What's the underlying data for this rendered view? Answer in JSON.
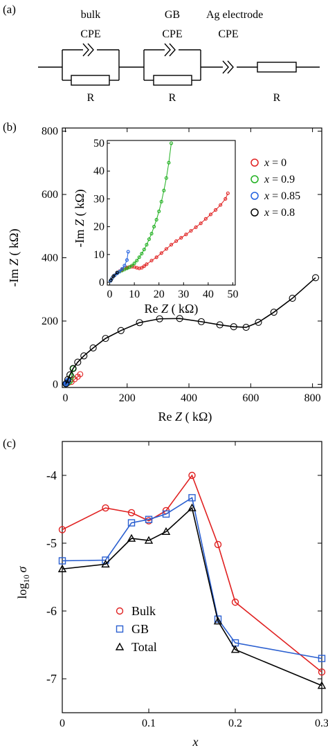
{
  "circuit": {
    "panel_label": "(a)",
    "elements": [
      {
        "top1": "bulk",
        "top2": "CPE",
        "bottom": "R"
      },
      {
        "top1": "GB",
        "top2": "CPE",
        "bottom": "R"
      },
      {
        "top1": "Ag electrode",
        "top2": "CPE",
        "bottom": "R"
      }
    ]
  },
  "chart_data": [
    {
      "type": "scatter",
      "panel_label": "(b)",
      "xlabel": "Re Z ( kΩ)",
      "ylabel": "-Im Z ( kΩ)",
      "xlim": [
        -10,
        830
      ],
      "ylim": [
        -10,
        810
      ],
      "xticks": [
        0,
        200,
        400,
        600,
        800
      ],
      "yticks": [
        0,
        200,
        400,
        600,
        800
      ],
      "series": [
        {
          "name": "x = 0",
          "color": "#e02020",
          "x": [
            2,
            10,
            20,
            30,
            40,
            48
          ],
          "y": [
            1,
            5,
            8,
            16,
            24,
            32
          ]
        },
        {
          "name": "x = 0.9",
          "color": "#20b020",
          "x": [
            1,
            5,
            10,
            15,
            20,
            25
          ],
          "y": [
            1,
            4,
            6,
            10,
            25,
            50
          ]
        },
        {
          "name": "x = 0.85",
          "color": "#2060e0",
          "x": [
            1,
            3,
            5,
            7,
            8
          ],
          "y": [
            1,
            3,
            5,
            8,
            11
          ]
        },
        {
          "name": "x = 0.8",
          "color": "#000000",
          "x": [
            2,
            8,
            15,
            25,
            40,
            60,
            90,
            130,
            180,
            240,
            305,
            370,
            440,
            500,
            545,
            585,
            625,
            675,
            735,
            810
          ],
          "y": [
            2,
            15,
            30,
            50,
            70,
            90,
            115,
            145,
            170,
            195,
            207,
            208,
            198,
            188,
            182,
            180,
            196,
            228,
            272,
            337
          ]
        }
      ],
      "legend_position": "right",
      "inset": {
        "xlabel": "Re Z ( kΩ)",
        "ylabel": "-Im Z ( kΩ)",
        "xlim": [
          -1,
          51
        ],
        "ylim": [
          -1,
          51
        ],
        "xticks": [
          0,
          10,
          20,
          30,
          40,
          50
        ],
        "yticks": [
          0,
          10,
          20,
          30,
          40,
          50
        ],
        "series": [
          {
            "name": "x = 0",
            "color": "#e02020",
            "x": [
              0.3,
              1,
              2,
              3,
              4,
              5,
              6,
              7,
              8,
              9,
              10,
              11,
              12,
              13,
              14,
              15,
              17,
              19,
              21,
              23,
              25,
              27,
              29,
              31,
              33,
              35,
              37,
              39,
              41,
              43,
              45,
              47,
              48
            ],
            "y": [
              0.5,
              1.5,
              2.5,
              3.3,
              4.0,
              4.5,
              5.0,
              5.3,
              5.5,
              5.6,
              5.5,
              5.2,
              5.0,
              5.2,
              5.8,
              6.5,
              7.8,
              9.0,
              10.5,
              12.0,
              13.5,
              14.8,
              16.0,
              17.2,
              18.5,
              19.8,
              21.2,
              22.8,
              24.4,
              26.0,
              27.8,
              30.0,
              32.0
            ]
          },
          {
            "name": "x = 0.9",
            "color": "#20b020",
            "x": [
              0.3,
              1,
              2,
              3,
              4,
              5,
              6,
              7,
              8,
              9,
              10,
              11,
              12,
              13,
              14,
              15,
              16,
              17,
              18,
              19,
              20,
              21,
              22,
              23,
              24,
              25
            ],
            "y": [
              0.5,
              1.5,
              2.5,
              3.2,
              3.8,
              4.2,
              4.6,
              5.0,
              5.4,
              6.0,
              6.8,
              7.8,
              9.0,
              10.3,
              11.8,
              13.5,
              15.5,
              17.5,
              20.0,
              22.5,
              25.5,
              29.0,
              33.0,
              37.5,
              43.0,
              50.0
            ]
          },
          {
            "name": "x = 0.85",
            "color": "#2060e0",
            "x": [
              0.3,
              1,
              2,
              3,
              4,
              5,
              6,
              7,
              7.5
            ],
            "y": [
              0.5,
              1.5,
              2.5,
              3.2,
              3.9,
              4.8,
              6.0,
              8.0,
              11.0
            ]
          },
          {
            "name": "x = 0.8",
            "color": "#000000",
            "x": [
              0.5,
              1.5,
              3
            ],
            "y": [
              0.8,
              2.2,
              3.5
            ]
          }
        ]
      }
    },
    {
      "type": "line",
      "panel_label": "(c)",
      "xlabel": "x",
      "ylabel": "log10 σ",
      "ylabel_main": "log",
      "ylabel_sub": "10",
      "ylabel_sym": "σ",
      "xlim": [
        0,
        0.3
      ],
      "ylim": [
        -7.5,
        -3.5
      ],
      "xticks": [
        0,
        0.1,
        0.2,
        0.3
      ],
      "xtick_labels": [
        "0",
        "0.1",
        "0.2",
        "0.3"
      ],
      "yticks": [
        -4,
        -5,
        -6,
        -7
      ],
      "ytick_labels": [
        "-4",
        "-5",
        "-6",
        "-7"
      ],
      "legend_position": "lower-left",
      "series": [
        {
          "name": "Bulk",
          "color": "#e02020",
          "marker": "circle",
          "x": [
            0,
            0.05,
            0.08,
            0.1,
            0.12,
            0.15,
            0.18,
            0.2,
            0.3
          ],
          "y": [
            -4.8,
            -4.48,
            -4.55,
            -4.67,
            -4.52,
            -4.0,
            -5.02,
            -5.87,
            -6.9
          ]
        },
        {
          "name": "GB",
          "color": "#2a5fd0",
          "marker": "square",
          "x": [
            0,
            0.05,
            0.08,
            0.1,
            0.12,
            0.15,
            0.18,
            0.2,
            0.3
          ],
          "y": [
            -5.26,
            -5.25,
            -4.7,
            -4.65,
            -4.57,
            -4.33,
            -6.12,
            -6.47,
            -6.7
          ]
        },
        {
          "name": "Total",
          "color": "#000000",
          "marker": "triangle",
          "x": [
            0,
            0.05,
            0.08,
            0.1,
            0.12,
            0.15,
            0.18,
            0.2,
            0.3
          ],
          "y": [
            -5.38,
            -5.31,
            -4.93,
            -4.96,
            -4.83,
            -4.48,
            -6.15,
            -6.57,
            -7.1
          ]
        }
      ]
    }
  ]
}
